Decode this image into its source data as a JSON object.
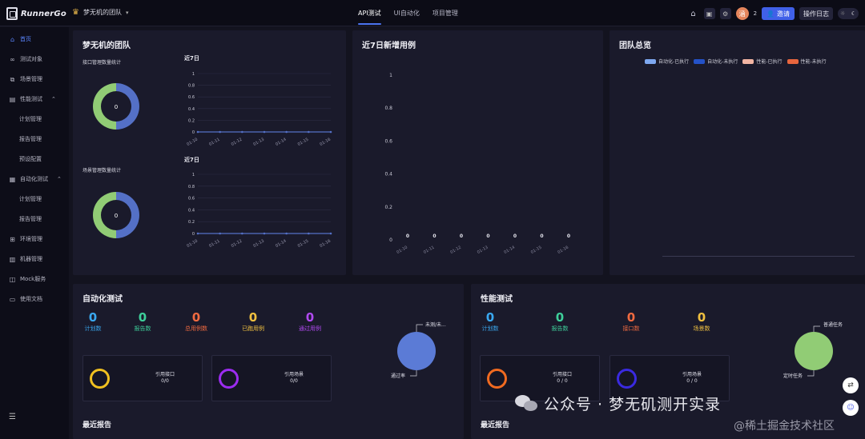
{
  "app": {
    "logo_text": "RunnerGo",
    "team_name": "梦无机的团队"
  },
  "nav": {
    "tabs": [
      "API测试",
      "UI自动化",
      "项目管理"
    ],
    "active": 0
  },
  "header": {
    "member_count": "2",
    "invite_label": "邀请",
    "log_label": "操作日志",
    "avatar_initial": "涵"
  },
  "sidebar": {
    "items": [
      {
        "label": "首页",
        "icon": "home-icon",
        "active": true
      },
      {
        "label": "测试对象",
        "icon": "link-icon"
      },
      {
        "label": "场景管理",
        "icon": "scene-icon"
      },
      {
        "label": "性能测试",
        "icon": "perf-icon",
        "expandable": true
      },
      {
        "label": "计划管理",
        "sub": true
      },
      {
        "label": "报告管理",
        "sub": true
      },
      {
        "label": "预设配置",
        "sub": true
      },
      {
        "label": "自动化测试",
        "icon": "auto-icon",
        "expandable": true
      },
      {
        "label": "计划管理",
        "sub": true
      },
      {
        "label": "报告管理",
        "sub": true
      },
      {
        "label": "环境管理",
        "icon": "env-icon"
      },
      {
        "label": "机器管理",
        "icon": "machine-icon"
      },
      {
        "label": "Mock服务",
        "icon": "mock-icon"
      },
      {
        "label": "使用文档",
        "icon": "doc-icon"
      }
    ]
  },
  "team_panel": {
    "title": "梦无机的团队",
    "api_label": "接口管理数量统计",
    "scene_label": "场景管理数量统计",
    "api_donut_value": "0",
    "scene_donut_value": "0",
    "chart_title_1": "近7日",
    "chart_title_2": "近7日"
  },
  "new_cases_panel": {
    "title": "近7日新增用例"
  },
  "overview_panel": {
    "title": "团队总览",
    "legend": [
      {
        "label": "自动化-已执行",
        "color": "#7ea8f0"
      },
      {
        "label": "自动化-未执行",
        "color": "#2452c8"
      },
      {
        "label": "性能-已执行",
        "color": "#f2b5a3"
      },
      {
        "label": "性能-未执行",
        "color": "#e8663e"
      }
    ]
  },
  "auto_panel": {
    "title": "自动化测试",
    "stats": [
      {
        "value": "0",
        "label": "计划数",
        "color": "#3aa8f0"
      },
      {
        "value": "0",
        "label": "报告数",
        "color": "#3ecf9a"
      },
      {
        "value": "0",
        "label": "总用例数",
        "color": "#f06a40"
      },
      {
        "value": "0",
        "label": "已跑用例",
        "color": "#f0c040"
      },
      {
        "value": "0",
        "label": "通过用例",
        "color": "#b04af0"
      }
    ],
    "ref_api_label": "引用接口",
    "ref_api_value": "0/0",
    "ref_scene_label": "引用场景",
    "ref_scene_value": "0/0",
    "pie_top_label": "未测/未...",
    "pie_bottom_label": "通过率",
    "recent_title": "最近报告"
  },
  "perf_panel": {
    "title": "性能测试",
    "stats": [
      {
        "value": "0",
        "label": "计划数",
        "color": "#3aa8f0"
      },
      {
        "value": "0",
        "label": "报告数",
        "color": "#3ecf9a"
      },
      {
        "value": "0",
        "label": "接口数",
        "color": "#f06a40"
      },
      {
        "value": "0",
        "label": "场景数",
        "color": "#f0c040"
      }
    ],
    "ref_api_label": "引用接口",
    "ref_api_value": "0 / 0",
    "ref_scene_label": "引用场景",
    "ref_scene_value": "0 / 0",
    "pie_top_label": "普通任务",
    "pie_bottom_label": "定时任务",
    "recent_title": "最近报告"
  },
  "watermark": {
    "text": "公众号 · 梦无矶测开实录",
    "sub": "@稀土掘金技术社区"
  },
  "chart_data": [
    {
      "type": "line",
      "title": "近7日",
      "x": [
        "01-10",
        "01-11",
        "01-12",
        "01-13",
        "01-14",
        "01-15",
        "01-16"
      ],
      "series": [
        {
          "values": [
            0,
            0,
            0,
            0,
            0,
            0,
            0
          ]
        }
      ],
      "ylim": [
        0,
        1
      ],
      "yticks": [
        "0",
        "0.2",
        "0.4",
        "0.6",
        "0.8",
        "1"
      ]
    },
    {
      "type": "line",
      "title": "近7日",
      "x": [
        "01-10",
        "01-11",
        "01-12",
        "01-13",
        "01-14",
        "01-15",
        "01-16"
      ],
      "series": [
        {
          "values": [
            0,
            0,
            0,
            0,
            0,
            0,
            0
          ]
        }
      ],
      "ylim": [
        0,
        1
      ],
      "yticks": [
        "0",
        "0.2",
        "0.4",
        "0.6",
        "0.8",
        "1"
      ]
    },
    {
      "type": "bar",
      "title": "近7日新增用例",
      "categories": [
        "01-10",
        "01-11",
        "01-12",
        "01-13",
        "01-14",
        "01-15",
        "01-16"
      ],
      "values": [
        0,
        0,
        0,
        0,
        0,
        0,
        0
      ],
      "ylim": [
        0,
        1
      ],
      "yticks": [
        "0",
        "0.2",
        "0.4",
        "0.6",
        "0.8",
        "1"
      ]
    }
  ]
}
